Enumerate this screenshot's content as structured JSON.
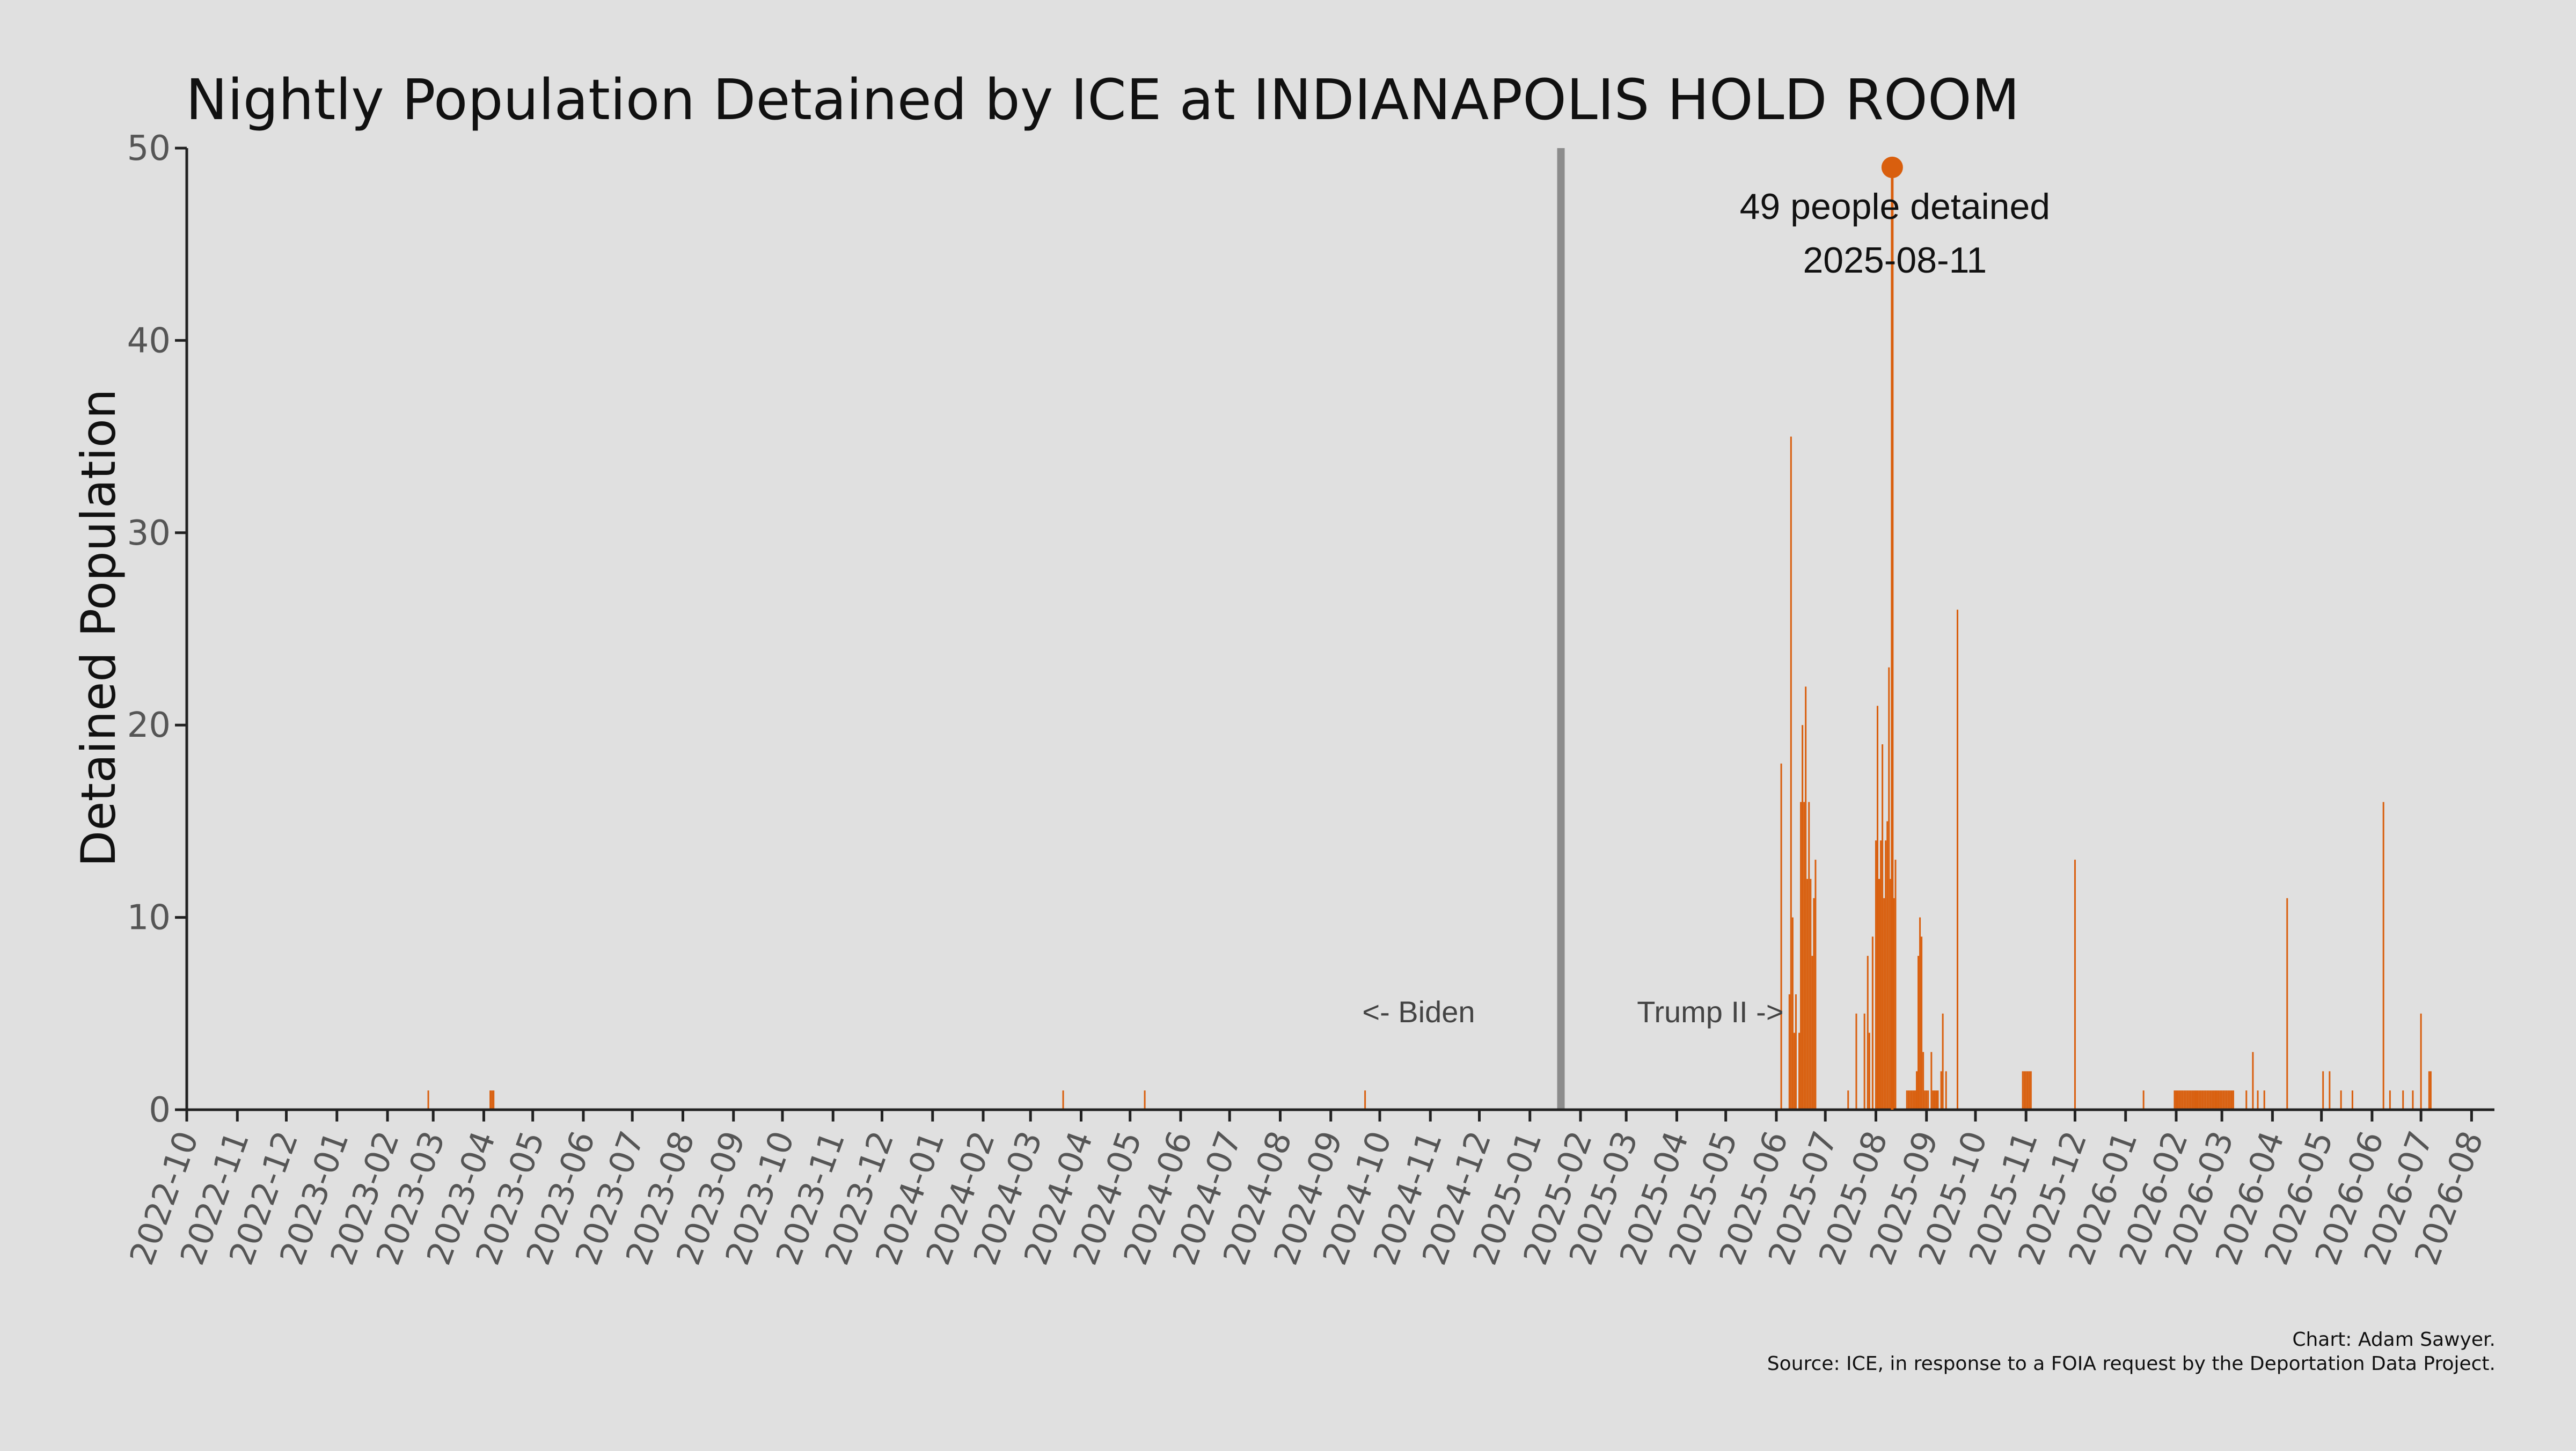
{
  "chart_data": {
    "type": "bar",
    "title": "Nightly Population Detained by ICE at INDIANAPOLIS HOLD ROOM",
    "ylabel": "Detained Population",
    "xlabel": "",
    "ylim": [
      0,
      50
    ],
    "xlim": [
      "2022-10-01",
      "2026-08-15"
    ],
    "yticks": [
      "0",
      "10",
      "20",
      "30",
      "40",
      "50"
    ],
    "xticks": [
      "2022-10",
      "2022-11",
      "2022-12",
      "2023-01",
      "2023-02",
      "2023-03",
      "2023-04",
      "2023-05",
      "2023-06",
      "2023-07",
      "2023-08",
      "2023-09",
      "2023-10",
      "2023-11",
      "2023-12",
      "2024-01",
      "2024-02",
      "2024-03",
      "2024-04",
      "2024-05",
      "2024-06",
      "2024-07",
      "2024-08",
      "2024-09",
      "2024-10",
      "2024-11",
      "2024-12",
      "2025-01",
      "2025-02",
      "2025-03",
      "2025-04",
      "2025-05",
      "2025-06",
      "2025-07",
      "2025-08",
      "2025-09",
      "2025-10",
      "2025-11",
      "2025-12",
      "2026-01",
      "2026-02",
      "2026-03",
      "2026-04",
      "2026-05",
      "2026-06",
      "2026-07",
      "2026-08"
    ],
    "bar_color": "#d95f0e",
    "divider_color": "#8c8c8c",
    "divider_date": "2025-01-20",
    "era_labels": {
      "left": "<- Biden",
      "right": "Trump II ->"
    },
    "peak": {
      "date": "2025-08-11",
      "value": 49,
      "label_line1": "49 people detained",
      "label_line2": "2025-08-11"
    },
    "series": [
      {
        "points": [
          [
            "2023-02-26",
            1
          ],
          [
            "2023-04-05",
            1
          ],
          [
            "2023-04-06",
            1
          ],
          [
            "2023-04-07",
            1
          ],
          [
            "2024-03-21",
            1
          ],
          [
            "2024-05-10",
            1
          ],
          [
            "2024-09-22",
            1
          ],
          [
            "2025-01-21",
            1
          ],
          [
            "2025-06-04",
            18
          ],
          [
            "2025-06-09",
            6
          ],
          [
            "2025-06-10",
            35
          ],
          [
            "2025-06-11",
            10
          ],
          [
            "2025-06-12",
            4
          ],
          [
            "2025-06-13",
            6
          ],
          [
            "2025-06-15",
            4
          ],
          [
            "2025-06-16",
            16
          ],
          [
            "2025-06-17",
            20
          ],
          [
            "2025-06-18",
            16
          ],
          [
            "2025-06-19",
            22
          ],
          [
            "2025-06-20",
            12
          ],
          [
            "2025-06-21",
            16
          ],
          [
            "2025-06-22",
            12
          ],
          [
            "2025-06-23",
            8
          ],
          [
            "2025-06-24",
            11
          ],
          [
            "2025-06-25",
            13
          ],
          [
            "2025-07-15",
            1
          ],
          [
            "2025-07-20",
            5
          ],
          [
            "2025-07-25",
            5
          ],
          [
            "2025-07-27",
            8
          ],
          [
            "2025-07-28",
            4
          ],
          [
            "2025-07-30",
            9
          ],
          [
            "2025-08-01",
            14
          ],
          [
            "2025-08-02",
            21
          ],
          [
            "2025-08-03",
            12
          ],
          [
            "2025-08-04",
            14
          ],
          [
            "2025-08-05",
            19
          ],
          [
            "2025-08-06",
            11
          ],
          [
            "2025-08-07",
            14
          ],
          [
            "2025-08-08",
            15
          ],
          [
            "2025-08-09",
            23
          ],
          [
            "2025-08-10",
            12
          ],
          [
            "2025-08-11",
            49
          ],
          [
            "2025-08-12",
            11
          ],
          [
            "2025-08-13",
            13
          ],
          [
            "2025-08-20",
            1
          ],
          [
            "2025-08-21",
            1
          ],
          [
            "2025-08-22",
            1
          ],
          [
            "2025-08-23",
            1
          ],
          [
            "2025-08-24",
            1
          ],
          [
            "2025-08-25",
            1
          ],
          [
            "2025-08-26",
            2
          ],
          [
            "2025-08-27",
            8
          ],
          [
            "2025-08-28",
            10
          ],
          [
            "2025-08-29",
            9
          ],
          [
            "2025-08-30",
            3
          ],
          [
            "2025-08-31",
            1
          ],
          [
            "2025-09-01",
            1
          ],
          [
            "2025-09-02",
            1
          ],
          [
            "2025-09-04",
            3
          ],
          [
            "2025-09-05",
            1
          ],
          [
            "2025-09-06",
            1
          ],
          [
            "2025-09-07",
            1
          ],
          [
            "2025-09-08",
            1
          ],
          [
            "2025-09-10",
            2
          ],
          [
            "2025-09-11",
            5
          ],
          [
            "2025-09-13",
            2
          ],
          [
            "2025-09-20",
            26
          ],
          [
            "2025-10-30",
            2
          ],
          [
            "2025-10-31",
            2
          ],
          [
            "2025-11-01",
            2
          ],
          [
            "2025-11-02",
            2
          ],
          [
            "2025-11-03",
            2
          ],
          [
            "2025-11-04",
            2
          ],
          [
            "2025-12-01",
            13
          ],
          [
            "2026-01-12",
            1
          ],
          [
            "2026-01-31",
            1
          ],
          [
            "2026-02-01",
            1
          ],
          [
            "2026-02-02",
            1
          ],
          [
            "2026-02-03",
            1
          ],
          [
            "2026-02-04",
            1
          ],
          [
            "2026-02-05",
            1
          ],
          [
            "2026-02-06",
            1
          ],
          [
            "2026-02-07",
            1
          ],
          [
            "2026-02-08",
            1
          ],
          [
            "2026-02-09",
            1
          ],
          [
            "2026-02-10",
            1
          ],
          [
            "2026-02-11",
            1
          ],
          [
            "2026-02-12",
            1
          ],
          [
            "2026-02-13",
            1
          ],
          [
            "2026-02-14",
            1
          ],
          [
            "2026-02-15",
            1
          ],
          [
            "2026-02-16",
            1
          ],
          [
            "2026-02-17",
            1
          ],
          [
            "2026-02-18",
            1
          ],
          [
            "2026-02-19",
            1
          ],
          [
            "2026-02-20",
            1
          ],
          [
            "2026-02-21",
            1
          ],
          [
            "2026-02-22",
            1
          ],
          [
            "2026-02-23",
            1
          ],
          [
            "2026-02-24",
            1
          ],
          [
            "2026-02-25",
            1
          ],
          [
            "2026-02-26",
            1
          ],
          [
            "2026-02-27",
            1
          ],
          [
            "2026-02-28",
            1
          ],
          [
            "2026-03-01",
            1
          ],
          [
            "2026-03-02",
            1
          ],
          [
            "2026-03-03",
            1
          ],
          [
            "2026-03-04",
            1
          ],
          [
            "2026-03-05",
            1
          ],
          [
            "2026-03-06",
            1
          ],
          [
            "2026-03-07",
            1
          ],
          [
            "2026-03-08",
            1
          ],
          [
            "2026-03-16",
            1
          ],
          [
            "2026-03-20",
            3
          ],
          [
            "2026-03-23",
            1
          ],
          [
            "2026-03-27",
            1
          ],
          [
            "2026-04-10",
            11
          ],
          [
            "2026-05-02",
            2
          ],
          [
            "2026-05-06",
            2
          ],
          [
            "2026-05-13",
            1
          ],
          [
            "2026-05-20",
            1
          ],
          [
            "2026-06-08",
            16
          ],
          [
            "2026-06-12",
            1
          ],
          [
            "2026-06-20",
            1
          ],
          [
            "2026-06-26",
            1
          ],
          [
            "2026-07-01",
            5
          ],
          [
            "2026-07-06",
            2
          ],
          [
            "2026-07-07",
            2
          ]
        ]
      }
    ]
  },
  "credits": {
    "line1": "Chart: Adam Sawyer.",
    "line2": "Source: ICE, in response to a FOIA request by the Deportation Data Project."
  }
}
